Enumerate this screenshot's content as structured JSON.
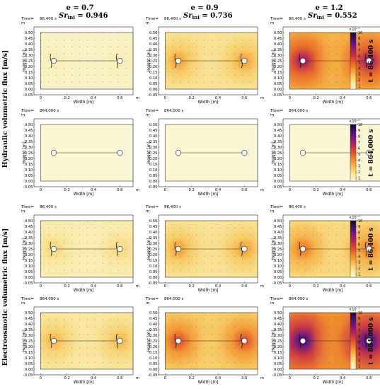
{
  "figure": {
    "columns": [
      {
        "e_label": "e = 0.7",
        "sr_label": "Sr",
        "sr_sub": "ini",
        "sr_value": " = 0.946"
      },
      {
        "e_label": "e = 0.9",
        "sr_label": "Sr",
        "sr_sub": "ini",
        "sr_value": " = 0.736"
      },
      {
        "e_label": "e = 1.2",
        "sr_label": "Sr",
        "sr_sub": "ini",
        "sr_value": " = 0.552"
      }
    ],
    "row_groups": [
      {
        "label": "Hydraulic volumetric flux [m/s]"
      },
      {
        "label": "Electroosmotic volumetric flux [m/s]"
      }
    ],
    "time_labels_right": [
      "t = 86,400 s",
      "t = 864,000 s",
      "t = 86,400 s",
      "t = 864,000 s"
    ]
  },
  "chart_data": [
    {
      "type": "heatmap",
      "row": 0,
      "col": 0,
      "group": "hydraulic",
      "time_text": "86,400 s",
      "intensity": 0.08
    },
    {
      "type": "heatmap",
      "row": 0,
      "col": 1,
      "group": "hydraulic",
      "time_text": "86,400 s",
      "intensity": 0.35
    },
    {
      "type": "heatmap",
      "row": 0,
      "col": 2,
      "group": "hydraulic",
      "time_text": "86,400 s",
      "intensity": 0.75
    },
    {
      "type": "heatmap",
      "row": 1,
      "col": 0,
      "group": "hydraulic",
      "time_text": "864,000 s",
      "intensity": 0.0
    },
    {
      "type": "heatmap",
      "row": 1,
      "col": 1,
      "group": "hydraulic",
      "time_text": "864,000 s",
      "intensity": 0.0
    },
    {
      "type": "heatmap",
      "row": 1,
      "col": 2,
      "group": "hydraulic",
      "time_text": "864,000 s",
      "intensity": 0.0
    },
    {
      "type": "heatmap",
      "row": 2,
      "col": 0,
      "group": "electroosmotic",
      "time_text": "86,400 s",
      "intensity": 0.2
    },
    {
      "type": "heatmap",
      "row": 2,
      "col": 1,
      "group": "electroosmotic",
      "time_text": "86,400 s",
      "intensity": 0.35
    },
    {
      "type": "heatmap",
      "row": 2,
      "col": 2,
      "group": "electroosmotic",
      "time_text": "86,400 s",
      "intensity": 0.45
    },
    {
      "type": "heatmap",
      "row": 3,
      "col": 0,
      "group": "electroosmotic",
      "time_text": "864,000 s",
      "intensity": 0.3
    },
    {
      "type": "heatmap",
      "row": 3,
      "col": 1,
      "group": "electroosmotic",
      "time_text": "864,000 s",
      "intensity": 0.55
    },
    {
      "type": "heatmap",
      "row": 3,
      "col": 2,
      "group": "electroosmotic",
      "time_text": "864,000 s",
      "intensity": 0.95
    }
  ],
  "axes": {
    "time_prefix": "Time=",
    "unit_m": "m",
    "xlabel": "Width [m]",
    "ylabel": "Height [m]",
    "xticks": [
      "0",
      "0.2",
      "0.4",
      "0.6"
    ],
    "xtick_values": [
      0,
      0.2,
      0.4,
      0.6
    ],
    "xlim": [
      -0.05,
      0.7
    ],
    "yticks": [
      "-0.05",
      "0.00",
      "0.05",
      "0.10",
      "0.15",
      "0.20",
      "0.25",
      "0.30",
      "0.35",
      "0.40",
      "0.45",
      "0.50"
    ],
    "ytick_values": [
      -0.05,
      0.0,
      0.05,
      0.1,
      0.15,
      0.2,
      0.25,
      0.3,
      0.35,
      0.4,
      0.45,
      0.5
    ],
    "ylim": [
      -0.05,
      0.55
    ],
    "domain_x": [
      0,
      0.7
    ],
    "domain_y": [
      0,
      0.5
    ],
    "electrode_x": [
      0.1,
      0.6
    ],
    "electrode_y": 0.25
  },
  "colorbar": {
    "exponent": "×10⁻⁷",
    "ticks": [
      "10",
      "9",
      "8",
      "7",
      "6",
      "5",
      "4",
      "3",
      "2",
      "1"
    ],
    "tick_values": [
      10,
      9,
      8,
      7,
      6,
      5,
      4,
      3,
      2,
      1
    ],
    "range": [
      0.5,
      10
    ],
    "colors": [
      "#fbf6d4",
      "#f9e9a6",
      "#f7cf6a",
      "#f4a93f",
      "#ef7f2a",
      "#e2512e",
      "#c5304b",
      "#9b1d6f",
      "#6a1587",
      "#3a0f6e",
      "#120a2c"
    ]
  }
}
